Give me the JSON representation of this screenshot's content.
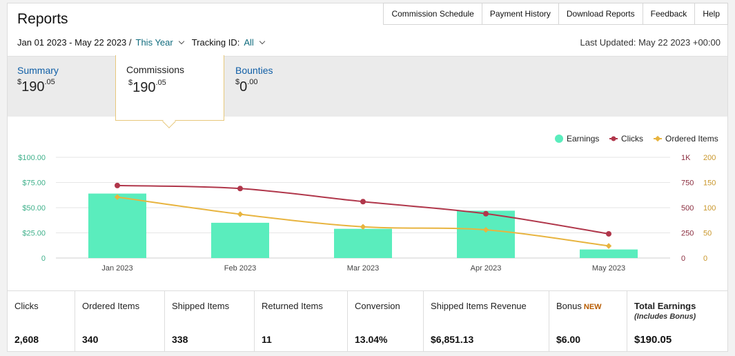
{
  "header": {
    "title": "Reports",
    "nav": [
      "Commission Schedule",
      "Payment History",
      "Download Reports",
      "Feedback",
      "Help"
    ]
  },
  "filters": {
    "date_range": "Jan 01 2023 - May 22 2023 /",
    "period": "This Year",
    "tracking_label": "Tracking ID:",
    "tracking_value": "All",
    "last_updated": "Last Updated: May 22 2023 +00:00"
  },
  "tabs": {
    "summary": {
      "label": "Summary",
      "currency": "$",
      "whole": "190",
      "cents": ".05"
    },
    "commissions": {
      "label": "Commissions",
      "currency": "$",
      "whole": "190",
      "cents": ".05"
    },
    "bounties": {
      "label": "Bounties",
      "currency": "$",
      "whole": "0",
      "cents": ".00"
    }
  },
  "chart_data": {
    "type": "bar",
    "categories": [
      "Jan 2023",
      "Feb 2023",
      "Mar 2023",
      "Apr 2023",
      "May 2023"
    ],
    "series": [
      {
        "name": "Earnings",
        "type": "bar",
        "axis": "left",
        "color": "#5aedbd",
        "values": [
          64,
          35,
          29,
          47,
          8.5
        ]
      },
      {
        "name": "Clicks",
        "type": "line",
        "axis": "right1",
        "color": "#b0364a",
        "values": [
          720,
          690,
          560,
          440,
          240
        ]
      },
      {
        "name": "Ordered Items",
        "type": "line",
        "axis": "right2",
        "color": "#e8b43f",
        "values": [
          121,
          87,
          62,
          56,
          24
        ]
      }
    ],
    "left_axis": {
      "ticks": [
        "$100.00",
        "$75.00",
        "$50.00",
        "$25.00",
        "0"
      ],
      "range": [
        0,
        100
      ],
      "color": "#3eb08a"
    },
    "right1_axis": {
      "ticks": [
        "1K",
        "750",
        "500",
        "250",
        "0"
      ],
      "range": [
        0,
        1000
      ],
      "color": "#8a2c3e"
    },
    "right2_axis": {
      "ticks": [
        "200",
        "150",
        "100",
        "50",
        "0"
      ],
      "range": [
        0,
        200
      ],
      "color": "#c9962a"
    },
    "legend": "top-right",
    "grid": true
  },
  "stats": [
    {
      "label": "Clicks",
      "value": "2,608"
    },
    {
      "label": "Ordered Items",
      "value": "340"
    },
    {
      "label": "Shipped Items",
      "value": "338"
    },
    {
      "label": "Returned Items",
      "value": "11"
    },
    {
      "label": "Conversion",
      "value": "13.04%"
    },
    {
      "label": "Shipped Items Revenue",
      "value": "$6,851.13"
    },
    {
      "label": "Bonus",
      "badge": "NEW",
      "value": "$6.00"
    },
    {
      "label": "Total Earnings",
      "note": "(Includes Bonus)",
      "value": "$190.05"
    }
  ]
}
